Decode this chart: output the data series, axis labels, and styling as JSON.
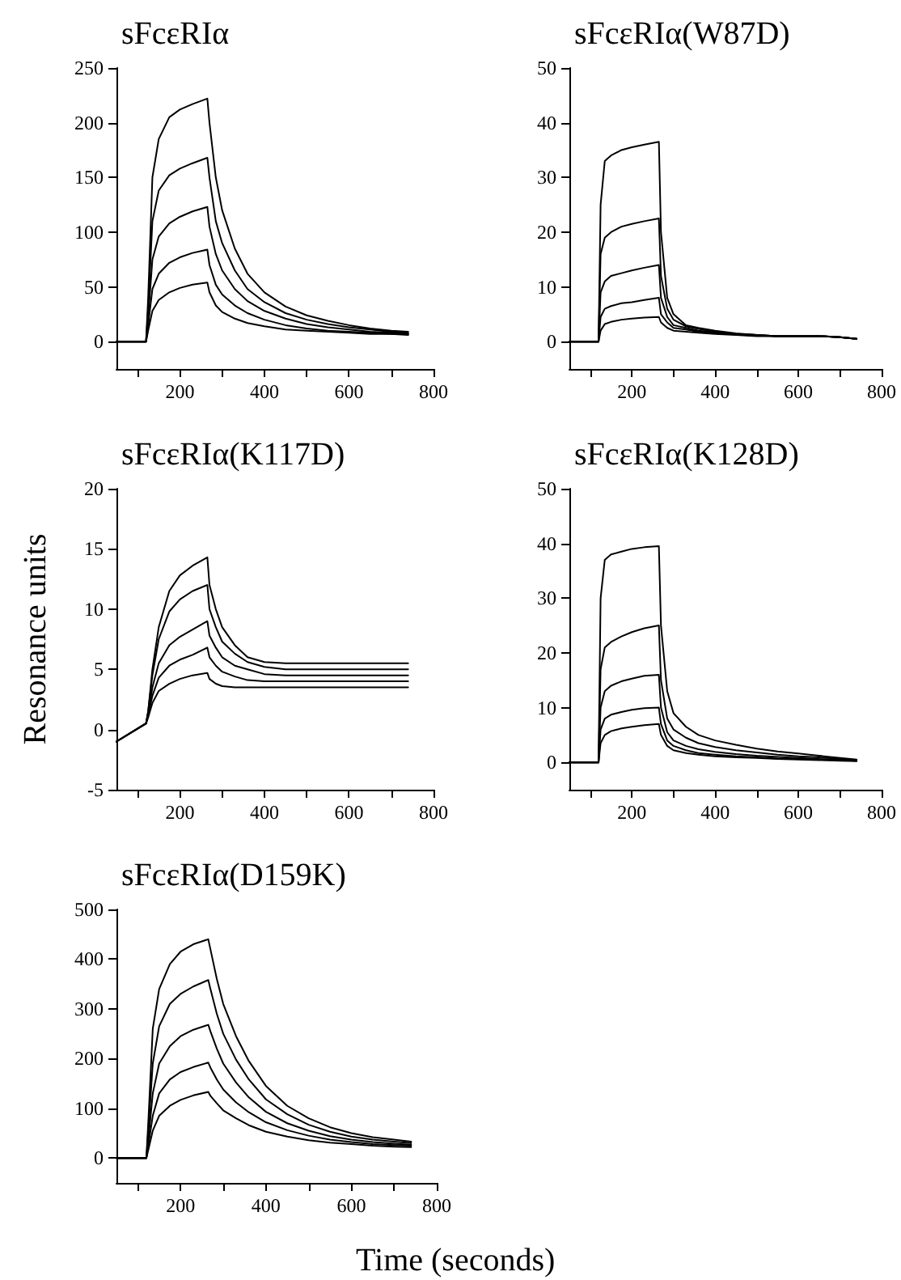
{
  "chart_data": [
    {
      "type": "line",
      "title": "sFcεRIα",
      "x": [
        50,
        120,
        125,
        135,
        150,
        175,
        200,
        230,
        265,
        270,
        285,
        300,
        330,
        360,
        400,
        450,
        500,
        550,
        600,
        650,
        700,
        740
      ],
      "xlim": [
        50,
        800
      ],
      "xticks": [
        {
          "value": 100,
          "label": null
        },
        200,
        {
          "value": 300,
          "label": null
        },
        400,
        {
          "value": 500,
          "label": null
        },
        600,
        {
          "value": 700,
          "label": null
        },
        800
      ],
      "ylim": [
        -25,
        250
      ],
      "yticks": [
        0,
        50,
        100,
        150,
        200,
        250
      ],
      "grid": false,
      "marker": "none",
      "line_style": "solid",
      "series": [
        {
          "color": "#000000",
          "values": [
            0,
            0,
            40,
            150,
            185,
            205,
            212,
            217,
            222,
            200,
            150,
            120,
            85,
            62,
            45,
            32,
            24,
            19,
            15,
            12,
            10,
            9
          ]
        },
        {
          "color": "#000000",
          "values": [
            0,
            0,
            30,
            110,
            138,
            152,
            158,
            163,
            168,
            150,
            110,
            90,
            65,
            48,
            36,
            26,
            20,
            16,
            13,
            11,
            9,
            8
          ]
        },
        {
          "color": "#000000",
          "values": [
            0,
            0,
            22,
            75,
            96,
            108,
            114,
            119,
            123,
            105,
            80,
            65,
            48,
            37,
            28,
            21,
            16,
            13,
            11,
            9,
            8,
            7
          ]
        },
        {
          "color": "#000000",
          "values": [
            0,
            0,
            15,
            48,
            62,
            72,
            77,
            81,
            84,
            70,
            52,
            43,
            33,
            26,
            20,
            15,
            12,
            10,
            9,
            8,
            7,
            7
          ]
        },
        {
          "color": "#000000",
          "values": [
            0,
            0,
            10,
            28,
            38,
            45,
            49,
            52,
            54,
            45,
            33,
            27,
            21,
            17,
            14,
            11,
            10,
            9,
            8,
            7,
            7,
            6
          ]
        }
      ]
    },
    {
      "type": "line",
      "title": "sFcεRIα(W87D)",
      "x": [
        50,
        120,
        125,
        135,
        150,
        175,
        200,
        230,
        265,
        270,
        285,
        300,
        330,
        360,
        400,
        450,
        500,
        550,
        600,
        650,
        700,
        740
      ],
      "xlim": [
        50,
        800
      ],
      "xticks": [
        {
          "value": 100,
          "label": null
        },
        200,
        {
          "value": 300,
          "label": null
        },
        400,
        {
          "value": 500,
          "label": null
        },
        600,
        {
          "value": 700,
          "label": null
        },
        800
      ],
      "ylim": [
        -5,
        50
      ],
      "yticks": [
        0,
        10,
        20,
        30,
        40,
        50
      ],
      "grid": false,
      "marker": "none",
      "line_style": "solid",
      "series": [
        {
          "color": "#000000",
          "values": [
            0,
            0,
            25,
            33,
            34,
            35,
            35.5,
            36,
            36.5,
            20,
            8,
            5,
            3,
            2.5,
            2,
            1.5,
            1.2,
            1,
            1,
            1,
            0.8,
            0.5
          ]
        },
        {
          "color": "#000000",
          "values": [
            0,
            0,
            16,
            19,
            20,
            21,
            21.5,
            22,
            22.5,
            12,
            6,
            4,
            2.8,
            2.3,
            1.8,
            1.4,
            1.2,
            1,
            1,
            1,
            0.8,
            0.5
          ]
        },
        {
          "color": "#000000",
          "values": [
            0,
            0,
            9,
            11,
            12,
            12.5,
            13,
            13.5,
            14,
            8,
            4.5,
            3,
            2.5,
            2,
            1.7,
            1.4,
            1.2,
            1,
            1,
            1,
            0.8,
            0.5
          ]
        },
        {
          "color": "#000000",
          "values": [
            0,
            0,
            4.5,
            6,
            6.5,
            7,
            7.2,
            7.6,
            8,
            5,
            3.5,
            2.5,
            2.2,
            1.8,
            1.6,
            1.3,
            1.1,
            1,
            1,
            1,
            0.8,
            0.5
          ]
        },
        {
          "color": "#000000",
          "values": [
            0,
            0,
            2,
            3.2,
            3.6,
            4,
            4.2,
            4.4,
            4.5,
            3.5,
            2.5,
            2,
            1.8,
            1.6,
            1.4,
            1.2,
            1,
            1,
            1,
            1,
            0.8,
            0.5
          ]
        }
      ]
    },
    {
      "type": "line",
      "title": "sFcεRIα(K117D)",
      "ylabel": "Resonance units",
      "x": [
        50,
        120,
        125,
        135,
        150,
        175,
        200,
        230,
        265,
        270,
        285,
        300,
        330,
        360,
        400,
        450,
        500,
        550,
        600,
        650,
        700,
        740
      ],
      "xlim": [
        50,
        800
      ],
      "xticks": [
        {
          "value": 100,
          "label": null
        },
        200,
        {
          "value": 300,
          "label": null
        },
        400,
        {
          "value": 500,
          "label": null
        },
        600,
        {
          "value": 700,
          "label": null
        },
        800
      ],
      "ylim": [
        -5,
        20
      ],
      "yticks": [
        -5,
        0,
        5,
        10,
        15,
        20
      ],
      "grid": false,
      "marker": "none",
      "line_style": "solid",
      "series": [
        {
          "color": "#000000",
          "values": [
            -1,
            0.5,
            1.5,
            5,
            8.5,
            11.5,
            12.8,
            13.6,
            14.3,
            12,
            10,
            8.5,
            7,
            6,
            5.6,
            5.5,
            5.5,
            5.5,
            5.5,
            5.5,
            5.5,
            5.5
          ]
        },
        {
          "color": "#000000",
          "values": [
            -1,
            0.5,
            1.5,
            4.5,
            7.5,
            9.8,
            10.8,
            11.5,
            12,
            10,
            8.5,
            7.3,
            6.3,
            5.6,
            5.2,
            5,
            5,
            5,
            5,
            5,
            5,
            5
          ]
        },
        {
          "color": "#000000",
          "values": [
            -1,
            0.5,
            1.3,
            3.5,
            5.5,
            7,
            7.7,
            8.3,
            9,
            7.8,
            6.8,
            6,
            5.3,
            5,
            4.6,
            4.5,
            4.5,
            4.5,
            4.5,
            4.5,
            4.5,
            4.5
          ]
        },
        {
          "color": "#000000",
          "values": [
            -1,
            0.5,
            1.2,
            2.8,
            4.3,
            5.3,
            5.8,
            6.2,
            6.8,
            6,
            5.3,
            4.8,
            4.4,
            4.1,
            4,
            4,
            4,
            4,
            4,
            4,
            4,
            4
          ]
        },
        {
          "color": "#000000",
          "values": [
            -1,
            0.5,
            1,
            2.2,
            3.2,
            3.8,
            4.2,
            4.5,
            4.7,
            4.2,
            3.8,
            3.6,
            3.5,
            3.5,
            3.5,
            3.5,
            3.5,
            3.5,
            3.5,
            3.5,
            3.5,
            3.5
          ]
        }
      ]
    },
    {
      "type": "line",
      "title": "sFcεRIα(K128D)",
      "x": [
        50,
        120,
        125,
        135,
        150,
        175,
        200,
        230,
        265,
        270,
        285,
        300,
        330,
        360,
        400,
        450,
        500,
        550,
        600,
        650,
        700,
        740
      ],
      "xlim": [
        50,
        800
      ],
      "xticks": [
        {
          "value": 100,
          "label": null
        },
        200,
        {
          "value": 300,
          "label": null
        },
        400,
        {
          "value": 500,
          "label": null
        },
        600,
        {
          "value": 700,
          "label": null
        },
        800
      ],
      "ylim": [
        -5,
        50
      ],
      "yticks": [
        0,
        10,
        20,
        30,
        40,
        50
      ],
      "grid": false,
      "marker": "none",
      "line_style": "solid",
      "series": [
        {
          "color": "#000000",
          "values": [
            0,
            0,
            30,
            37,
            38,
            38.5,
            39,
            39.3,
            39.5,
            25,
            13,
            9,
            6.5,
            5,
            4,
            3.2,
            2.5,
            2,
            1.6,
            1.2,
            0.8,
            0.5
          ]
        },
        {
          "color": "#000000",
          "values": [
            0,
            0,
            17,
            21,
            22,
            23,
            23.8,
            24.5,
            25,
            15,
            8,
            6,
            4.5,
            3.5,
            2.8,
            2.2,
            1.8,
            1.4,
            1.1,
            0.9,
            0.6,
            0.4
          ]
        },
        {
          "color": "#000000",
          "values": [
            0,
            0,
            10,
            13,
            14,
            14.8,
            15.3,
            15.8,
            16,
            10,
            5.5,
            4,
            3,
            2.4,
            1.9,
            1.5,
            1.2,
            1,
            0.8,
            0.6,
            0.5,
            0.3
          ]
        },
        {
          "color": "#000000",
          "values": [
            0,
            0,
            6,
            8,
            8.7,
            9.2,
            9.6,
            9.9,
            10,
            7,
            4,
            3,
            2.2,
            1.7,
            1.4,
            1.1,
            0.9,
            0.7,
            0.6,
            0.5,
            0.4,
            0.3
          ]
        },
        {
          "color": "#000000",
          "values": [
            0,
            0,
            3.5,
            5,
            5.7,
            6.2,
            6.5,
            6.8,
            7,
            5,
            3,
            2.2,
            1.7,
            1.4,
            1.1,
            0.9,
            0.8,
            0.6,
            0.5,
            0.4,
            0.3,
            0.2
          ]
        }
      ]
    },
    {
      "type": "line",
      "title": "sFcεRIα(D159K)",
      "xlabel": "Time (seconds)",
      "x": [
        50,
        120,
        125,
        135,
        150,
        175,
        200,
        230,
        265,
        270,
        285,
        300,
        330,
        360,
        400,
        450,
        500,
        550,
        600,
        650,
        700,
        740
      ],
      "xlim": [
        50,
        800
      ],
      "xticks": [
        {
          "value": 100,
          "label": null
        },
        200,
        {
          "value": 300,
          "label": null
        },
        400,
        {
          "value": 500,
          "label": null
        },
        600,
        {
          "value": 700,
          "label": null
        },
        800
      ],
      "ylim": [
        -50,
        500
      ],
      "yticks": [
        0,
        100,
        200,
        300,
        400,
        500
      ],
      "grid": false,
      "marker": "none",
      "line_style": "solid",
      "series": [
        {
          "color": "#000000",
          "values": [
            0,
            0,
            80,
            260,
            340,
            390,
            415,
            430,
            440,
            420,
            360,
            310,
            245,
            195,
            145,
            105,
            80,
            62,
            50,
            42,
            37,
            33
          ]
        },
        {
          "color": "#000000",
          "values": [
            0,
            0,
            60,
            190,
            265,
            310,
            330,
            345,
            358,
            340,
            290,
            250,
            198,
            158,
            118,
            88,
            67,
            53,
            43,
            37,
            33,
            30
          ]
        },
        {
          "color": "#000000",
          "values": [
            0,
            0,
            40,
            130,
            190,
            225,
            245,
            258,
            268,
            255,
            220,
            190,
            152,
            122,
            93,
            70,
            55,
            44,
            37,
            32,
            29,
            27
          ]
        },
        {
          "color": "#000000",
          "values": [
            0,
            0,
            28,
            85,
            130,
            158,
            173,
            183,
            192,
            182,
            158,
            138,
            112,
            92,
            72,
            56,
            45,
            37,
            32,
            28,
            26,
            25
          ]
        },
        {
          "color": "#000000",
          "values": [
            0,
            0,
            18,
            55,
            85,
            105,
            117,
            126,
            133,
            125,
            110,
            96,
            80,
            66,
            53,
            43,
            36,
            31,
            28,
            25,
            23,
            22
          ]
        }
      ]
    }
  ]
}
